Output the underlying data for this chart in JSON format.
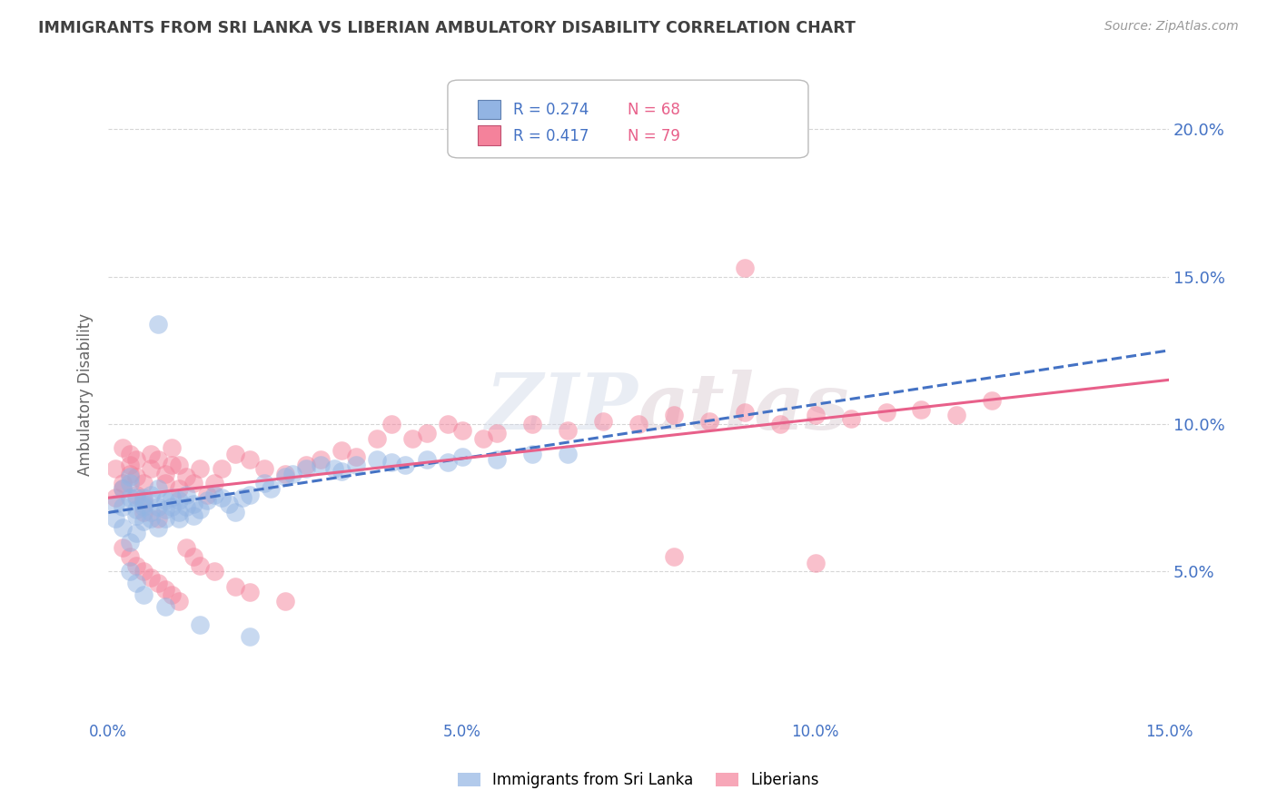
{
  "title": "IMMIGRANTS FROM SRI LANKA VS LIBERIAN AMBULATORY DISABILITY CORRELATION CHART",
  "source": "Source: ZipAtlas.com",
  "ylabel": "Ambulatory Disability",
  "xlim": [
    0.0,
    0.15
  ],
  "ylim": [
    0.0,
    0.22
  ],
  "yticks": [
    0.05,
    0.1,
    0.15,
    0.2
  ],
  "ytick_labels": [
    "5.0%",
    "10.0%",
    "15.0%",
    "20.0%"
  ],
  "xticks": [
    0.0,
    0.05,
    0.1,
    0.15
  ],
  "xtick_labels": [
    "0.0%",
    "5.0%",
    "10.0%",
    "15.0%"
  ],
  "sri_lanka_color": "#92b4e3",
  "liberian_color": "#f4829b",
  "sri_lanka_line_color": "#4472c4",
  "liberian_line_color": "#e8608a",
  "background_color": "#ffffff",
  "grid_color": "#cccccc",
  "axis_label_color": "#4472c4",
  "title_color": "#404040",
  "sri_lanka_x": [
    0.001,
    0.001,
    0.002,
    0.002,
    0.002,
    0.003,
    0.003,
    0.003,
    0.003,
    0.004,
    0.004,
    0.004,
    0.004,
    0.005,
    0.005,
    0.005,
    0.005,
    0.006,
    0.006,
    0.006,
    0.007,
    0.007,
    0.007,
    0.008,
    0.008,
    0.008,
    0.009,
    0.009,
    0.01,
    0.01,
    0.01,
    0.011,
    0.011,
    0.012,
    0.012,
    0.013,
    0.014,
    0.015,
    0.016,
    0.017,
    0.018,
    0.019,
    0.02,
    0.022,
    0.023,
    0.025,
    0.026,
    0.028,
    0.03,
    0.032,
    0.033,
    0.035,
    0.038,
    0.04,
    0.042,
    0.045,
    0.048,
    0.05,
    0.055,
    0.06,
    0.065,
    0.007,
    0.003,
    0.004,
    0.005,
    0.008,
    0.013,
    0.02
  ],
  "sri_lanka_y": [
    0.073,
    0.068,
    0.072,
    0.065,
    0.078,
    0.08,
    0.082,
    0.075,
    0.06,
    0.071,
    0.069,
    0.075,
    0.063,
    0.072,
    0.075,
    0.067,
    0.073,
    0.07,
    0.068,
    0.076,
    0.072,
    0.065,
    0.078,
    0.074,
    0.071,
    0.068,
    0.072,
    0.075,
    0.074,
    0.07,
    0.068,
    0.076,
    0.072,
    0.073,
    0.069,
    0.071,
    0.074,
    0.076,
    0.075,
    0.073,
    0.07,
    0.075,
    0.076,
    0.08,
    0.078,
    0.082,
    0.083,
    0.085,
    0.086,
    0.085,
    0.084,
    0.086,
    0.088,
    0.087,
    0.086,
    0.088,
    0.087,
    0.089,
    0.088,
    0.09,
    0.09,
    0.134,
    0.05,
    0.046,
    0.042,
    0.038,
    0.032,
    0.028
  ],
  "liberian_x": [
    0.001,
    0.001,
    0.002,
    0.002,
    0.002,
    0.003,
    0.003,
    0.003,
    0.004,
    0.004,
    0.004,
    0.005,
    0.005,
    0.005,
    0.006,
    0.006,
    0.007,
    0.007,
    0.008,
    0.008,
    0.009,
    0.009,
    0.01,
    0.01,
    0.011,
    0.012,
    0.013,
    0.014,
    0.015,
    0.016,
    0.018,
    0.02,
    0.022,
    0.025,
    0.028,
    0.03,
    0.033,
    0.035,
    0.038,
    0.04,
    0.043,
    0.045,
    0.048,
    0.05,
    0.053,
    0.055,
    0.06,
    0.065,
    0.07,
    0.075,
    0.08,
    0.085,
    0.09,
    0.095,
    0.1,
    0.105,
    0.11,
    0.115,
    0.12,
    0.125,
    0.002,
    0.003,
    0.004,
    0.005,
    0.006,
    0.007,
    0.008,
    0.009,
    0.01,
    0.011,
    0.012,
    0.013,
    0.015,
    0.018,
    0.02,
    0.025,
    0.08,
    0.1,
    0.09
  ],
  "liberian_y": [
    0.085,
    0.075,
    0.078,
    0.092,
    0.08,
    0.083,
    0.086,
    0.09,
    0.082,
    0.076,
    0.088,
    0.074,
    0.08,
    0.07,
    0.085,
    0.09,
    0.068,
    0.088,
    0.08,
    0.083,
    0.086,
    0.092,
    0.078,
    0.086,
    0.082,
    0.08,
    0.085,
    0.076,
    0.08,
    0.085,
    0.09,
    0.088,
    0.085,
    0.083,
    0.086,
    0.088,
    0.091,
    0.089,
    0.095,
    0.1,
    0.095,
    0.097,
    0.1,
    0.098,
    0.095,
    0.097,
    0.1,
    0.098,
    0.101,
    0.1,
    0.103,
    0.101,
    0.104,
    0.1,
    0.103,
    0.102,
    0.104,
    0.105,
    0.103,
    0.108,
    0.058,
    0.055,
    0.052,
    0.05,
    0.048,
    0.046,
    0.044,
    0.042,
    0.04,
    0.058,
    0.055,
    0.052,
    0.05,
    0.045,
    0.043,
    0.04,
    0.055,
    0.053,
    0.153
  ],
  "sri_lanka_line": {
    "x0": 0.0,
    "y0": 0.07,
    "x1": 0.15,
    "y1": 0.125
  },
  "liberian_line": {
    "x0": 0.0,
    "y0": 0.075,
    "x1": 0.15,
    "y1": 0.115
  }
}
